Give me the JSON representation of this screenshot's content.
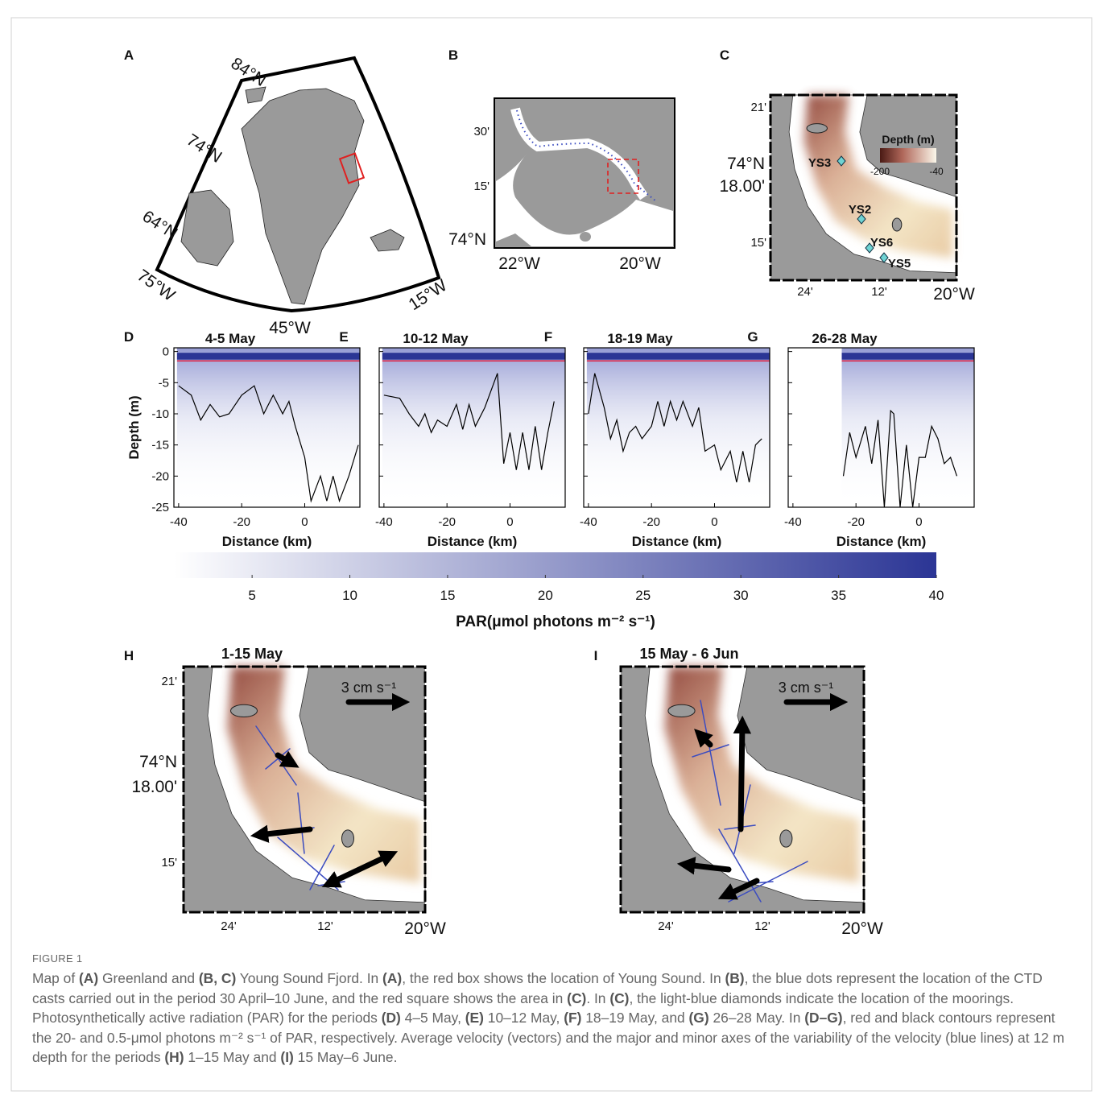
{
  "map_a": {
    "panel": "A",
    "lat_labels": [
      "84°N",
      "74°N",
      "64°N"
    ],
    "lon_labels": [
      "75°W",
      "45°W",
      "15°W"
    ]
  },
  "map_b": {
    "panel": "B",
    "lat_labels": [
      "30'",
      "15'",
      "74°N"
    ],
    "lon_labels": [
      "22°W",
      "20°W"
    ]
  },
  "map_c": {
    "panel": "C",
    "lat_labels": [
      "21'",
      "74°N",
      "18.00'",
      "15'"
    ],
    "lon_labels": [
      "24'",
      "12'",
      "20°W"
    ],
    "legend_title": "Depth (m)",
    "legend_ticks": [
      "-200",
      "-40"
    ],
    "moorings": [
      "YS3",
      "YS2",
      "YS6",
      "YS5"
    ]
  },
  "chart_data": [
    {
      "type": "line",
      "panel": "D",
      "title": "4-5 May",
      "xlabel": "Distance (km)",
      "ylabel": "Depth (m)",
      "xlim": [
        -41.5,
        17.5
      ],
      "ylim": [
        -25,
        0.6
      ],
      "xticks": [
        -40,
        -20,
        0
      ],
      "yticks": [
        0,
        -5,
        -10,
        -15,
        -20,
        -25
      ],
      "x": [
        -40,
        -36,
        -33,
        -30,
        -27,
        -24,
        -20,
        -16,
        -13,
        -10,
        -7,
        -5,
        -3,
        0,
        2,
        5,
        7,
        9,
        11,
        14,
        17
      ],
      "series": [
        {
          "color": "#000000",
          "values": [
            -5.5,
            -7,
            -11,
            -8.5,
            -10.5,
            -10,
            -7,
            -5.5,
            -10,
            -7,
            -10,
            -8,
            -12,
            -17,
            -24,
            -20,
            -24,
            -20,
            -24,
            -20,
            -15
          ]
        }
      ]
    },
    {
      "type": "line",
      "panel": "E",
      "title": "10-12 May",
      "xlabel": "Distance (km)",
      "xlim": [
        -41.5,
        17.5
      ],
      "ylim": [
        -25,
        0.6
      ],
      "xticks": [
        -40,
        -20,
        0
      ],
      "yticks": [
        0,
        -5,
        -10,
        -15,
        -20,
        -25
      ],
      "x": [
        -40,
        -35,
        -32,
        -29,
        -27,
        -25,
        -23,
        -20,
        -17,
        -15,
        -13,
        -11,
        -8,
        -4,
        -2,
        0,
        2,
        4,
        6,
        8,
        10,
        12,
        14
      ],
      "series": [
        {
          "color": "#000000",
          "values": [
            -7,
            -7.5,
            -10,
            -12,
            -10,
            -13,
            -11,
            -12,
            -8.5,
            -12.5,
            -8.5,
            -12,
            -9,
            -3.5,
            -18,
            -13,
            -19,
            -13,
            -19,
            -12,
            -19,
            -13,
            -8
          ]
        }
      ]
    },
    {
      "type": "line",
      "panel": "F",
      "title": "18-19 May",
      "xlabel": "Distance (km)",
      "xlim": [
        -41.5,
        17.5
      ],
      "ylim": [
        -25,
        0.6
      ],
      "xticks": [
        -40,
        -20,
        0
      ],
      "yticks": [
        0,
        -5,
        -10,
        -15,
        -20,
        -25
      ],
      "x": [
        -40,
        -38,
        -35,
        -33,
        -31,
        -29,
        -27,
        -25,
        -23,
        -20,
        -18,
        -16,
        -14,
        -12,
        -10,
        -7,
        -5,
        -3,
        0,
        2,
        5,
        7,
        9,
        11,
        13,
        15
      ],
      "series": [
        {
          "color": "#000000",
          "values": [
            -10,
            -3.5,
            -9,
            -14,
            -11,
            -16,
            -13,
            -12,
            -14,
            -12,
            -8,
            -12,
            -8,
            -11,
            -8,
            -12,
            -9,
            -16,
            -15,
            -19,
            -16,
            -21,
            -16,
            -21,
            -15,
            -14
          ]
        }
      ]
    },
    {
      "type": "line",
      "panel": "G",
      "title": "26-28 May",
      "xlabel": "Distance (km)",
      "xlim": [
        -41.5,
        17.5
      ],
      "ylim": [
        -25,
        0.6
      ],
      "xticks": [
        -40,
        -20,
        0
      ],
      "yticks": [
        0,
        -5,
        -10,
        -15,
        -20,
        -25
      ],
      "x": [
        -24,
        -22,
        -20,
        -17,
        -15,
        -13,
        -11,
        -9,
        -8,
        -6,
        -4,
        -2,
        0,
        2,
        4,
        6,
        8,
        10,
        12
      ],
      "series": [
        {
          "color": "#000000",
          "values": [
            -20,
            -13,
            -17,
            -12,
            -18,
            -11,
            -25,
            -9.5,
            -10,
            -25,
            -15,
            -25,
            -17,
            -17,
            -12,
            -14,
            -18,
            -17,
            -20
          ]
        }
      ]
    }
  ],
  "colorbar": {
    "label": "PAR(μmol photons m⁻² s⁻¹)",
    "lim": [
      1,
      40
    ],
    "ticks": [
      5,
      10,
      15,
      20,
      25,
      30,
      35,
      40
    ]
  },
  "velocity_maps": [
    {
      "panel": "H",
      "title": "1-15 May",
      "scale_label": "3 cm s⁻¹",
      "lat_labels": [
        "21'",
        "74°N",
        "18.00'",
        "15'"
      ],
      "lon_labels": [
        "24'",
        "12'",
        "20°W"
      ]
    },
    {
      "panel": "I",
      "title": "15 May - 6 Jun",
      "scale_label": "3 cm s⁻¹",
      "lon_labels": [
        "24'",
        "12'",
        "20°W"
      ]
    }
  ],
  "caption": {
    "figure_label": "FIGURE 1",
    "segments": [
      {
        "text": "Map of "
      },
      {
        "text": "(A)",
        "bold": true
      },
      {
        "text": " Greenland and "
      },
      {
        "text": "(B, C)",
        "bold": true
      },
      {
        "text": " Young Sound Fjord. In "
      },
      {
        "text": "(A)",
        "bold": true
      },
      {
        "text": ", the red box shows the location of Young Sound. In "
      },
      {
        "text": "(B)",
        "bold": true
      },
      {
        "text": ", the blue dots represent the location of the CTD casts carried out in the period 30 April–10 June, and the red square shows the area in "
      },
      {
        "text": "(C)",
        "bold": true
      },
      {
        "text": ". In "
      },
      {
        "text": "(C)",
        "bold": true
      },
      {
        "text": ", the light-blue diamonds indicate the location of the moorings. Photosynthetically active radiation (PAR) for the periods "
      },
      {
        "text": "(D)",
        "bold": true
      },
      {
        "text": " 4–5 May, "
      },
      {
        "text": "(E)",
        "bold": true
      },
      {
        "text": " 10–12 May, "
      },
      {
        "text": "(F)",
        "bold": true
      },
      {
        "text": " 18–19 May, and "
      },
      {
        "text": "(G)",
        "bold": true
      },
      {
        "text": " 26–28 May. In "
      },
      {
        "text": "(D–G)",
        "bold": true
      },
      {
        "text": ", red and black contours represent the 20- and 0.5-μmol photons m⁻² s⁻¹ of PAR, respectively. Average velocity (vectors) and the major and minor axes of the variability of the velocity (blue lines) at 12 m depth for the periods "
      },
      {
        "text": "(H)",
        "bold": true
      },
      {
        "text": " 1–15 May and "
      },
      {
        "text": "(I)",
        "bold": true
      },
      {
        "text": " 15 May–6 June."
      }
    ]
  }
}
